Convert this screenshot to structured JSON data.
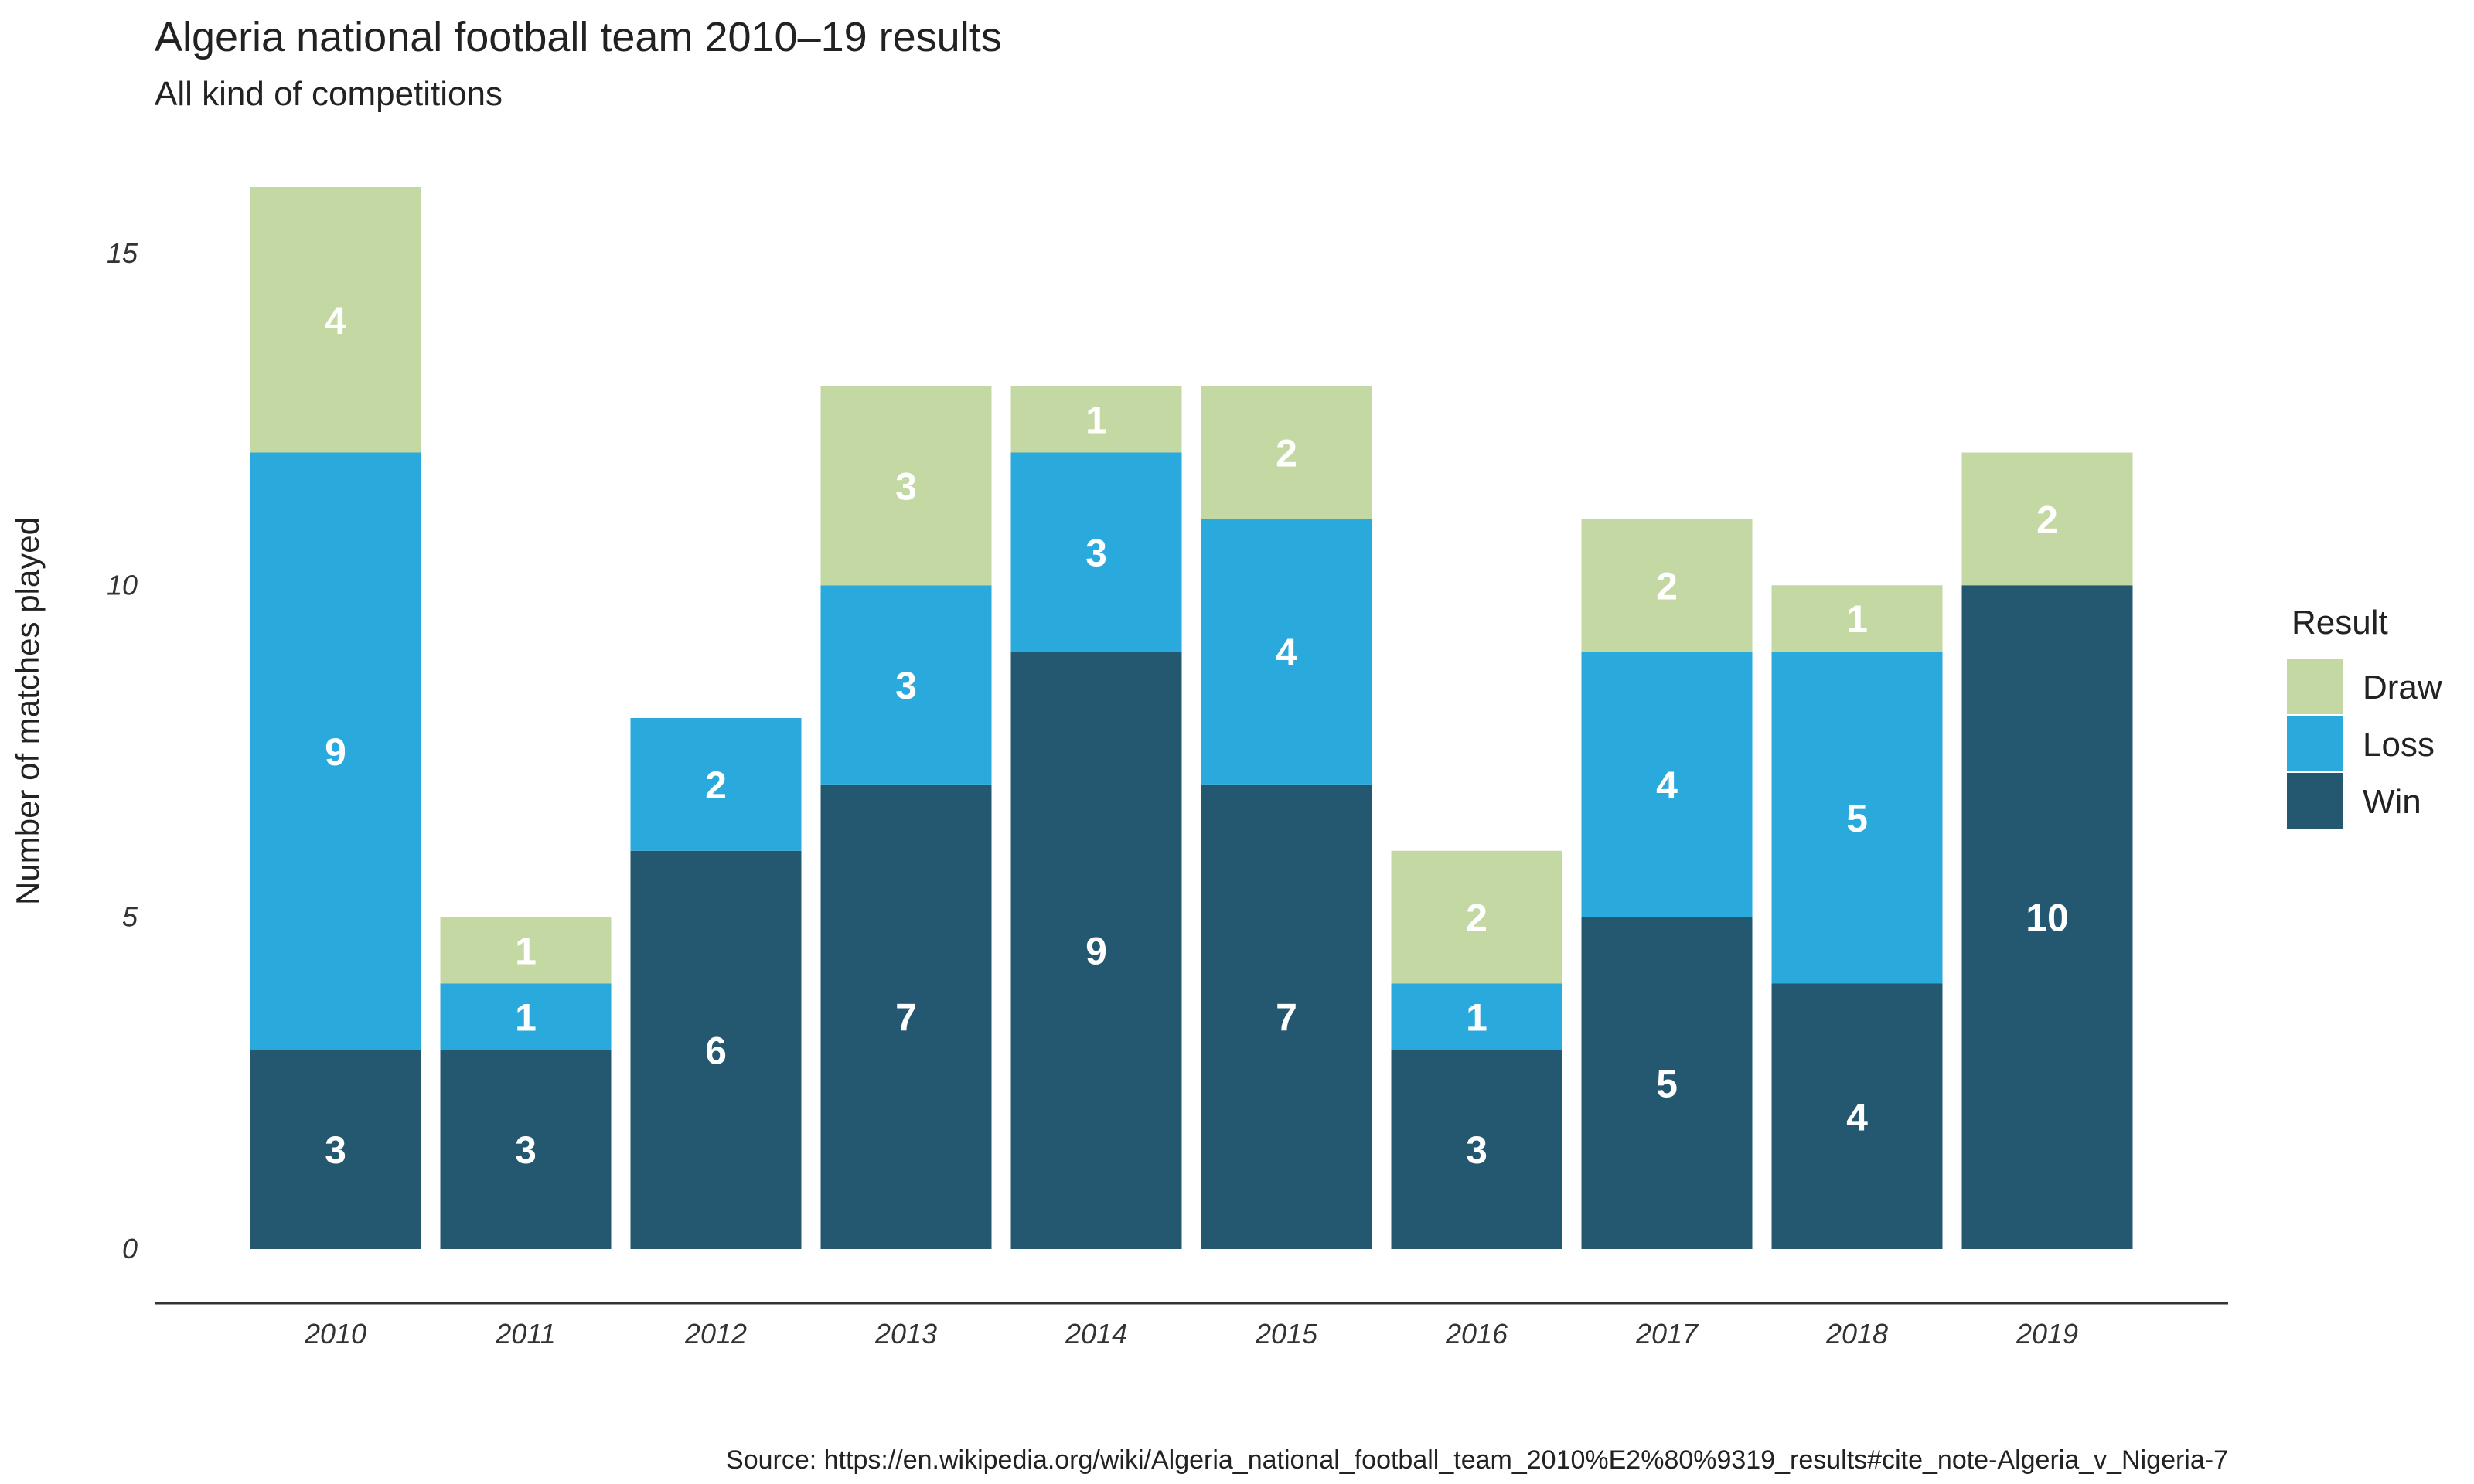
{
  "chart_data": {
    "type": "bar",
    "stacked": true,
    "title": "Algeria national football team 2010–19 results",
    "subtitle": "All kind of competitions",
    "xlabel": "",
    "ylabel": "Number of matches played",
    "categories": [
      "2010",
      "2011",
      "2012",
      "2013",
      "2014",
      "2015",
      "2016",
      "2017",
      "2018",
      "2019"
    ],
    "series": [
      {
        "name": "Win",
        "color": "#245870",
        "values": [
          3,
          3,
          6,
          7,
          9,
          7,
          3,
          5,
          4,
          10
        ]
      },
      {
        "name": "Loss",
        "color": "#29a9dc",
        "values": [
          9,
          1,
          2,
          3,
          3,
          4,
          1,
          4,
          5,
          0
        ]
      },
      {
        "name": "Draw",
        "color": "#c4d8a4",
        "values": [
          4,
          1,
          0,
          3,
          1,
          2,
          2,
          2,
          1,
          2
        ]
      }
    ],
    "ylim": [
      0,
      16
    ],
    "yticks": [
      "0",
      "5",
      "10",
      "15"
    ],
    "grid": false,
    "legend": {
      "title": "Result",
      "position": "right",
      "order": [
        "Draw",
        "Loss",
        "Win"
      ]
    },
    "caption": "Source: https://en.wikipedia.org/wiki/Algeria_national_football_team_2010%E2%80%9319_results#cite_note-Algeria_v_Nigeria-7"
  }
}
